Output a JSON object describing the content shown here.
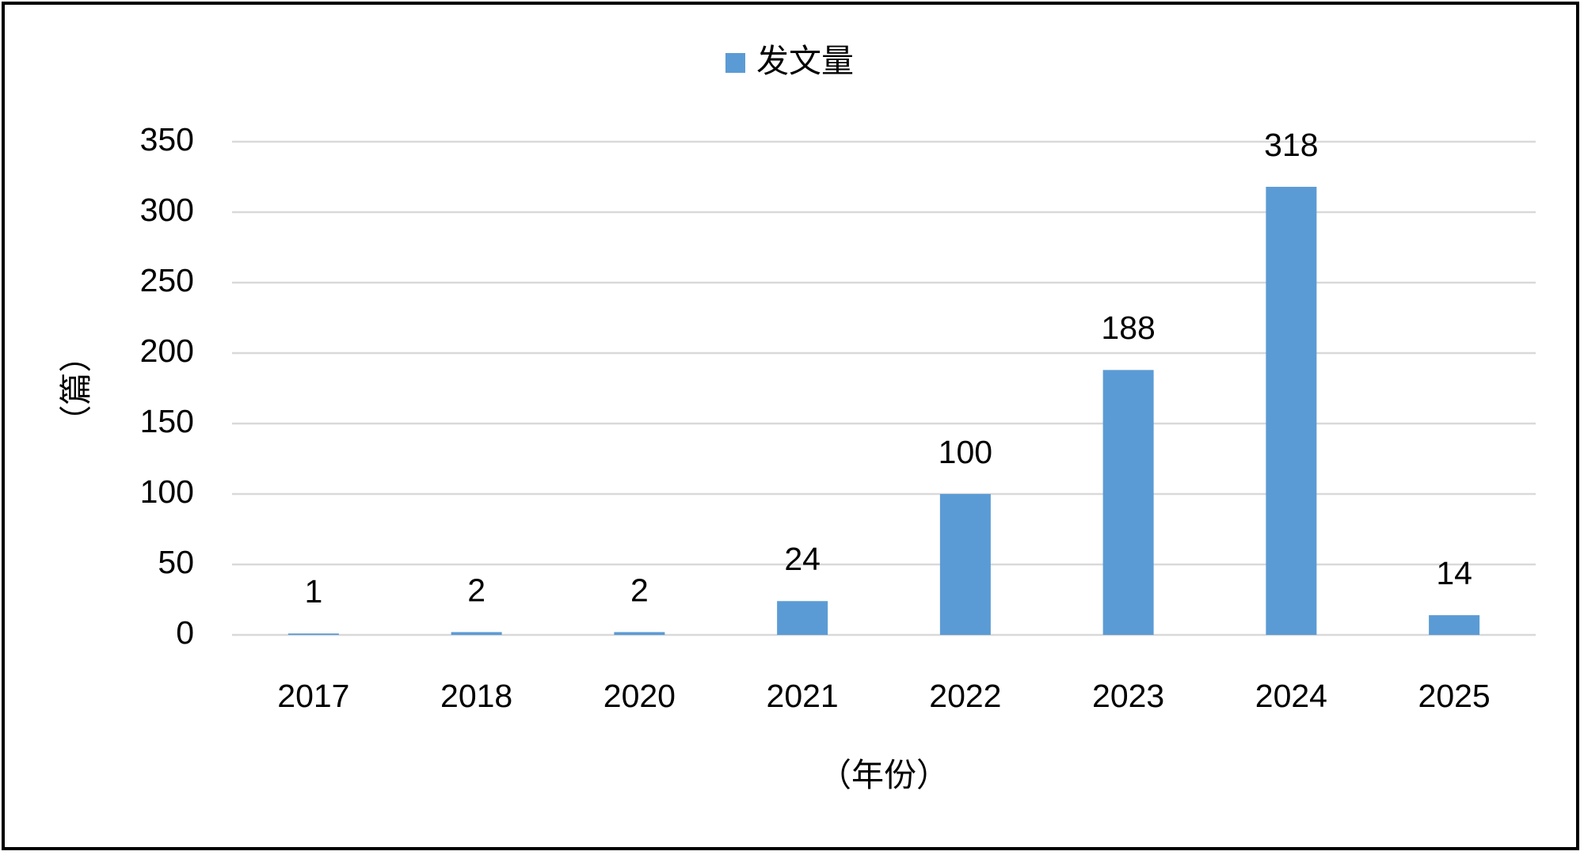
{
  "chart_data": {
    "type": "bar",
    "categories": [
      "2017",
      "2018",
      "2020",
      "2021",
      "2022",
      "2023",
      "2024",
      "2025"
    ],
    "series": [
      {
        "name": "发文量",
        "color": "#5b9bd5",
        "values": [
          1,
          2,
          2,
          24,
          100,
          188,
          318,
          14
        ]
      }
    ],
    "x_label": "（年份）",
    "y_label": "（篇）",
    "ylim": [
      0,
      350
    ],
    "yticks": [
      0,
      50,
      100,
      150,
      200,
      250,
      300,
      350
    ],
    "grid": true,
    "legend": "top",
    "data_labels": true
  }
}
